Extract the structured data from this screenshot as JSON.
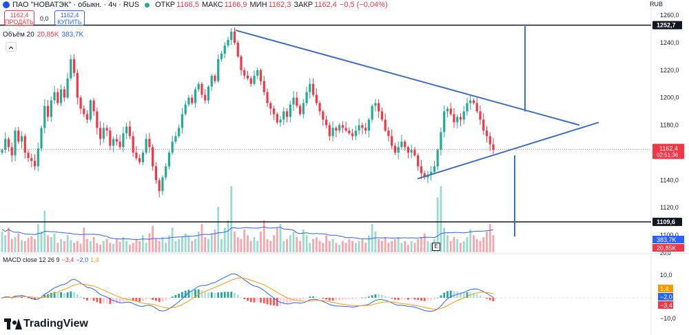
{
  "header": {
    "title": "ПАО \"НОВАТЭК\" · обыкн. · 4ч · RUS",
    "open_label": "ОТКР",
    "open": "1166,5",
    "high_label": "МАКС",
    "high": "1166,9",
    "low_label": "МИН",
    "low": "1162,3",
    "close_label": "ЗАКР",
    "close": "1162,4",
    "change": "−0,5 (−0,04%)"
  },
  "trade": {
    "sell_price": "1162,4",
    "sell_label": "ПРОДАТЬ",
    "spread": "0,0",
    "buy_price": "1162,4",
    "buy_label": "КУПИТЬ"
  },
  "volume_label": {
    "name": "Объём 20",
    "value1": "20,85K",
    "value2": "383,7K"
  },
  "macd_label": {
    "name": "MACD close 12 26 9",
    "hist": "−3,4",
    "macd": "−2,0",
    "signal": "1,4"
  },
  "brand": "TradingView",
  "currency": "RUB",
  "e_marker": "E",
  "colors": {
    "up": "#22ab94",
    "down": "#f23645",
    "accent": "#2962ff",
    "trend": "#3a6fc4",
    "signal": "#ff9800"
  },
  "chart_data": {
    "type": "candlestick",
    "title": "ПАО \"НОВАТЭК\" · обыкн. · 4ч · RUS",
    "currency": "RUB",
    "ylim": [
      1088,
      1264
    ],
    "yticks": [
      "1260,0",
      "1240,0",
      "1220,0",
      "1200,0",
      "1180,0",
      "1160,0",
      "1140,0",
      "1120,0",
      "1100,0"
    ],
    "price_badge": {
      "value": "1162,4",
      "countdown": "02:51:36"
    },
    "hlines": [
      {
        "value": 1252.7,
        "label": "1252,7"
      },
      {
        "value": 1109.6,
        "label": "1109,6"
      }
    ],
    "volume_badges": [
      "383,7K",
      "20,85K"
    ],
    "volume_scale_label": "20,0",
    "macd_yticks": [
      "10,0",
      "−10,0"
    ],
    "macd_badges": [
      "1,4",
      "−2,0",
      "−3,4"
    ],
    "triangle": {
      "upper": [
        [
          342,
          1249
        ],
        [
          841,
          1180
        ]
      ],
      "lower": [
        [
          606,
          1141
        ],
        [
          869,
          1182
        ]
      ],
      "vertical_right": [
        [
          762,
          1252
        ],
        [
          762,
          1190
        ]
      ],
      "vertical_drop": [
        [
          747,
          1158
        ],
        [
          747,
          1099
        ]
      ]
    },
    "closes": [
      1162,
      1170,
      1164,
      1158,
      1176,
      1168,
      1172,
      1160,
      1156,
      1154,
      1150,
      1163,
      1178,
      1194,
      1186,
      1198,
      1204,
      1196,
      1206,
      1200,
      1214,
      1228,
      1218,
      1200,
      1192,
      1188,
      1184,
      1198,
      1190,
      1178,
      1170,
      1178,
      1176,
      1165,
      1170,
      1168,
      1164,
      1174,
      1179,
      1172,
      1160,
      1156,
      1153,
      1160,
      1170,
      1164,
      1150,
      1140,
      1132,
      1142,
      1150,
      1160,
      1168,
      1172,
      1178,
      1188,
      1195,
      1200,
      1196,
      1206,
      1210,
      1202,
      1198,
      1208,
      1216,
      1212,
      1228,
      1232,
      1238,
      1242,
      1248,
      1240,
      1230,
      1220,
      1216,
      1214,
      1210,
      1216,
      1220,
      1212,
      1204,
      1196,
      1192,
      1188,
      1182,
      1184,
      1190,
      1186,
      1195,
      1200,
      1194,
      1188,
      1196,
      1204,
      1210,
      1202,
      1196,
      1190,
      1184,
      1180,
      1172,
      1178,
      1176,
      1180,
      1178,
      1176,
      1174,
      1172,
      1176,
      1180,
      1178,
      1176,
      1184,
      1194,
      1196,
      1190,
      1184,
      1176,
      1172,
      1165,
      1160,
      1164,
      1168,
      1164,
      1160,
      1162,
      1158,
      1150,
      1145,
      1142,
      1144,
      1146,
      1150,
      1162,
      1175,
      1190,
      1192,
      1188,
      1182,
      1186,
      1184,
      1190,
      1196,
      1198,
      1196,
      1190,
      1184,
      1176,
      1172,
      1166,
      1162
    ],
    "volumes": [
      22,
      18,
      26,
      14,
      16,
      20,
      13,
      12,
      15,
      17,
      14,
      30,
      22,
      44,
      18,
      16,
      20,
      10,
      14,
      12,
      18,
      13,
      10,
      12,
      9,
      26,
      14,
      12,
      16,
      10,
      8,
      12,
      14,
      10,
      9,
      14,
      11,
      16,
      12,
      8,
      10,
      14,
      12,
      18,
      10,
      20,
      28,
      14,
      12,
      16,
      10,
      18,
      26,
      12,
      14,
      16,
      20,
      18,
      12,
      14,
      22,
      30,
      16,
      14,
      20,
      24,
      48,
      14,
      26,
      34,
      70,
      22,
      16,
      14,
      24,
      18,
      12,
      16,
      12,
      22,
      34,
      14,
      12,
      18,
      26,
      30,
      12,
      14,
      18,
      22,
      16,
      12,
      24,
      18,
      10,
      14,
      16,
      12,
      10,
      18,
      12,
      14,
      10,
      8,
      12,
      10,
      14,
      12,
      10,
      12,
      14,
      10,
      18,
      30,
      22,
      14,
      12,
      16,
      10,
      12,
      14,
      16,
      10,
      12,
      8,
      12,
      10,
      14,
      16,
      20,
      12,
      10,
      14,
      58,
      70,
      26,
      18,
      12,
      16,
      14,
      10,
      12,
      16,
      24,
      18,
      14,
      12,
      16,
      22,
      30,
      18
    ]
  }
}
